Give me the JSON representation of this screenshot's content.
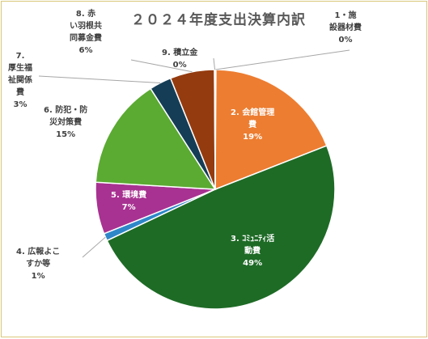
{
  "chart_data": {
    "type": "pie",
    "title": "２０２４年度支出決算内訳",
    "categories": [
      "1・施設器材費",
      "2. 会館管理費",
      "3. ｺﾐｭﾆﾃｨ活動費",
      "4. 広報よこすか等",
      "5. 環境費",
      "6. 防犯・防災対策費",
      "7. 厚生福祉関係費",
      "8. 赤い羽根共同募金費",
      "9. 積立金"
    ],
    "values": [
      0.1,
      19,
      49,
      1,
      7,
      15,
      3,
      6,
      0.1
    ],
    "colors": [
      "#c0c0c0",
      "#ed7d31",
      "#1e6b26",
      "#2e87c8",
      "#a83291",
      "#5baa32",
      "#153d56",
      "#943b0f",
      "#d0d0d0"
    ],
    "data_labels": [
      {
        "lines": [
          "1・施",
          "設器材費",
          "0%"
        ]
      },
      {
        "lines": [
          "2. 会館管理",
          "費",
          "19%"
        ]
      },
      {
        "lines": [
          "3. ｺﾐｭﾆﾃｨ活",
          "動費",
          "49%"
        ]
      },
      {
        "lines": [
          "4. 広報よこ",
          "すか等",
          "1%"
        ]
      },
      {
        "lines": [
          "5. 環境費",
          "7%"
        ]
      },
      {
        "lines": [
          "6. 防犯・防",
          "災対策費",
          "15%"
        ]
      },
      {
        "lines": [
          "7.",
          "厚生福",
          "祉関係",
          "費",
          "3%"
        ]
      },
      {
        "lines": [
          "8. 赤",
          "い羽根共",
          "同募金費",
          "6%"
        ]
      },
      {
        "lines": [
          "9. 積立金",
          "0%"
        ]
      }
    ],
    "legend": "none"
  }
}
